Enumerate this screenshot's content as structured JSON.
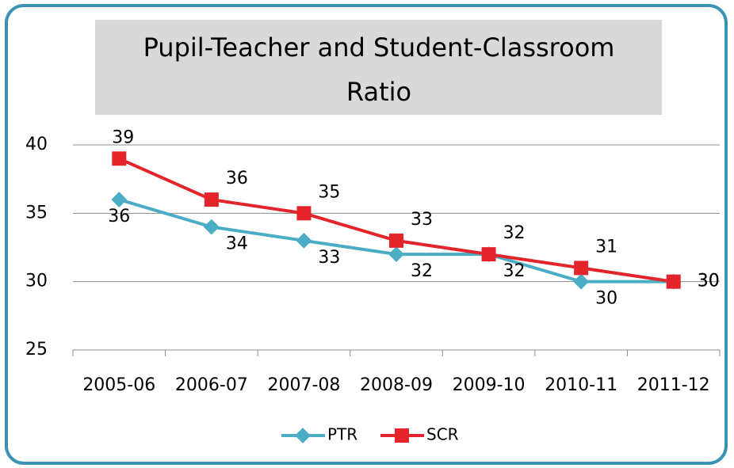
{
  "chart_data": {
    "type": "line",
    "title": "Pupil-Teacher and Student-Classroom Ratio",
    "categories": [
      "2005-06",
      "2006-07",
      "2007-08",
      "2008-09",
      "2009-10",
      "2010-11",
      "2011-12"
    ],
    "series": [
      {
        "name": "PTR",
        "color": "#4bacc6",
        "values": [
          36,
          34,
          33,
          32,
          32,
          30,
          30
        ]
      },
      {
        "name": "SCR",
        "color": "#e3242b",
        "values": [
          39,
          36,
          35,
          33,
          32,
          31,
          30
        ]
      }
    ],
    "ylim": [
      25,
      40
    ],
    "yticks": [
      25,
      30,
      35,
      40
    ],
    "grid": true,
    "legend": "bottom"
  }
}
